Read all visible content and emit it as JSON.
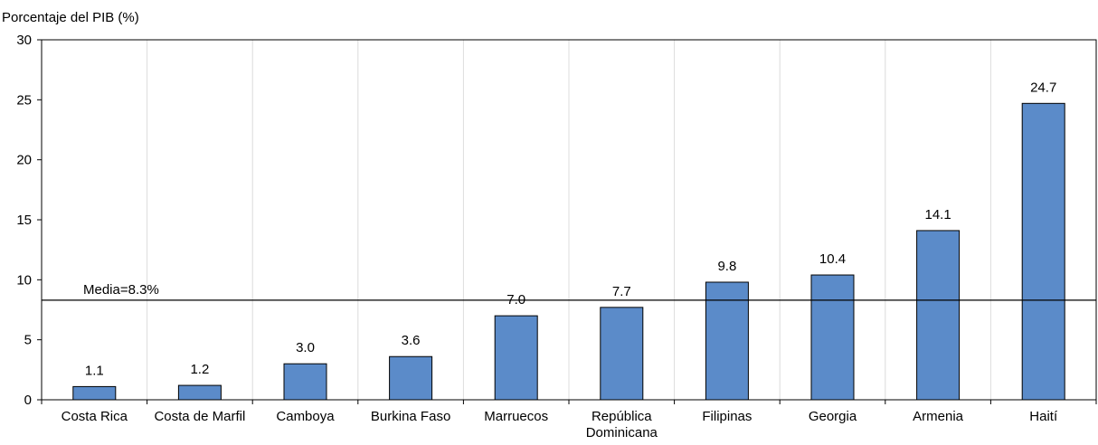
{
  "chart_data": {
    "type": "bar",
    "ylabel": "Porcentaje del PIB (%)",
    "categories": [
      "Costa Rica",
      "Costa de Marfil",
      "Camboya",
      "Burkina Faso",
      "Marruecos",
      "República Dominicana",
      "Filipinas",
      "Georgia",
      "Armenia",
      "Haití"
    ],
    "category_labels": [
      [
        "Costa Rica"
      ],
      [
        "Costa de Marfil"
      ],
      [
        "Camboya"
      ],
      [
        "Burkina Faso"
      ],
      [
        "Marruecos"
      ],
      [
        "República",
        "Dominicana"
      ],
      [
        "Filipinas"
      ],
      [
        "Georgia"
      ],
      [
        "Armenia"
      ],
      [
        "Haití"
      ]
    ],
    "values": [
      1.1,
      1.2,
      3.0,
      3.6,
      7.0,
      7.7,
      9.8,
      10.4,
      14.1,
      24.7
    ],
    "data_labels": [
      "1.1",
      "1.2",
      "3.0",
      "3.6",
      "7.0",
      "7.7",
      "9.8",
      "10.4",
      "14.1",
      "24.7"
    ],
    "ylim": [
      0,
      30
    ],
    "yticks": [
      0,
      5,
      10,
      15,
      20,
      25,
      30
    ],
    "reference_line": {
      "value": 8.3,
      "label": "Media=8.3%"
    },
    "bar_color": "#5b8bc9",
    "bar_edge_color": "#000000",
    "grid": "vertical separators between categories",
    "legend": "none"
  }
}
